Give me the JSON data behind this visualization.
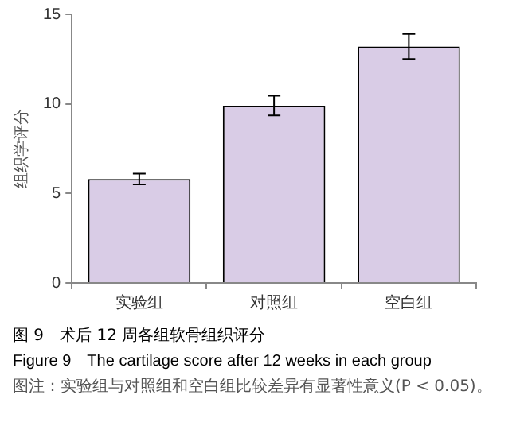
{
  "chart_data": {
    "type": "bar",
    "title": "图 9　术后 12 周各组软骨组织评分",
    "subtitle": "Figure 9　The cartilage score after 12 weeks in each group",
    "ylabel": "组织学评分",
    "annotations": [
      "图注：实验组与对照组和空白组比较差异有显著性意义(P < 0.05)。"
    ],
    "categories": [
      "实验组",
      "对照组",
      "空白组"
    ],
    "values": [
      5.8,
      9.9,
      13.2
    ],
    "errors": [
      0.3,
      0.55,
      0.7
    ],
    "color": "#d9cce6",
    "ylim": [
      0,
      15
    ],
    "yticks": [
      0,
      5,
      10,
      15
    ],
    "grid": false,
    "legend": false
  }
}
